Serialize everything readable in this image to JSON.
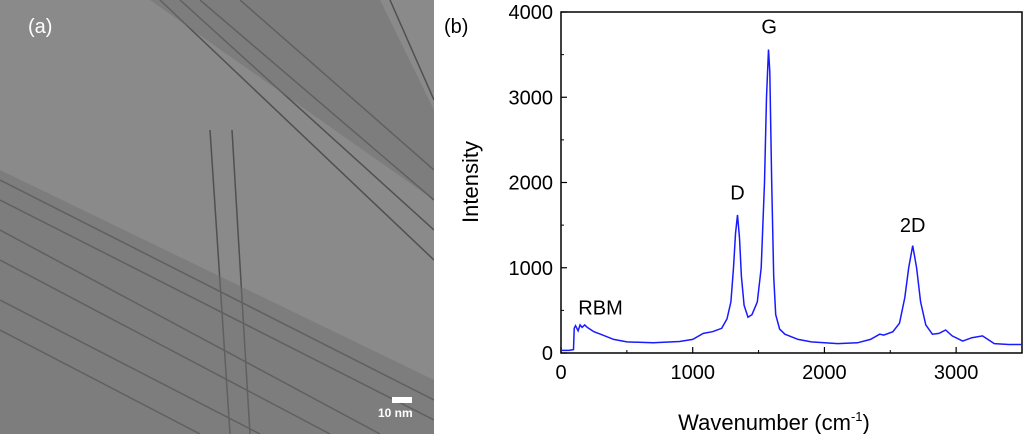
{
  "panel_a": {
    "label": "(a)",
    "scale_bar": "10 nm"
  },
  "panel_b": {
    "label": "(b)"
  },
  "chart_data": {
    "type": "line",
    "xlabel": "Wavenumber (cm",
    "xlabel_sup": "-1",
    "xlabel_end": ")",
    "ylabel": "Intensity",
    "xlim": [
      0,
      3500
    ],
    "ylim": [
      0,
      4000
    ],
    "xticks": [
      0,
      1000,
      2000,
      3000
    ],
    "yticks": [
      0,
      1000,
      2000,
      3000,
      4000
    ],
    "line_color": "#1a1aff",
    "annotations": [
      {
        "text": "RBM",
        "x": 300,
        "y": 450
      },
      {
        "text": "D",
        "x": 1340,
        "y": 1800
      },
      {
        "text": "G",
        "x": 1580,
        "y": 3750
      },
      {
        "text": "2D",
        "x": 2670,
        "y": 1420
      }
    ],
    "x": [
      0,
      60,
      95,
      100,
      110,
      130,
      145,
      160,
      180,
      200,
      250,
      300,
      400,
      500,
      700,
      900,
      1000,
      1080,
      1150,
      1220,
      1260,
      1290,
      1310,
      1325,
      1340,
      1355,
      1370,
      1390,
      1420,
      1450,
      1490,
      1520,
      1545,
      1560,
      1575,
      1585,
      1600,
      1615,
      1630,
      1660,
      1700,
      1800,
      1900,
      2100,
      2250,
      2350,
      2420,
      2450,
      2520,
      2570,
      2610,
      2640,
      2670,
      2700,
      2730,
      2770,
      2820,
      2870,
      2920,
      2970,
      3050,
      3120,
      3200,
      3240,
      3290,
      3400,
      3500
    ],
    "y": [
      30,
      30,
      40,
      290,
      320,
      260,
      330,
      300,
      330,
      300,
      250,
      220,
      160,
      130,
      120,
      135,
      160,
      230,
      250,
      290,
      400,
      600,
      1000,
      1400,
      1620,
      1350,
      900,
      560,
      420,
      450,
      600,
      1000,
      2000,
      3000,
      3560,
      3300,
      2000,
      900,
      450,
      280,
      220,
      160,
      130,
      110,
      120,
      160,
      220,
      210,
      250,
      350,
      650,
      1000,
      1260,
      1000,
      600,
      330,
      220,
      230,
      270,
      200,
      140,
      180,
      200,
      160,
      110,
      100,
      100
    ]
  }
}
